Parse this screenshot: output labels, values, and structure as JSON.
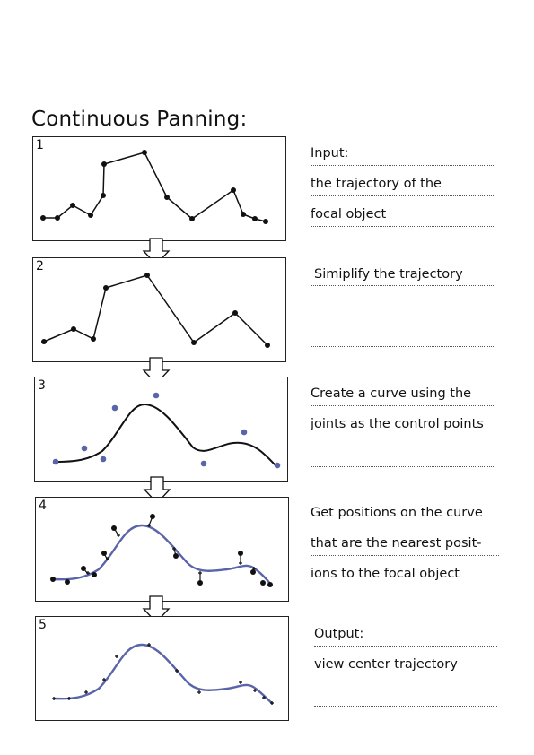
{
  "title": "Continuous Panning:",
  "steps": [
    {
      "number": "1",
      "lines": [
        "Input:",
        "the trajectory of the",
        "focal object"
      ]
    },
    {
      "number": "2",
      "lines": [
        "Simiplify the trajectory",
        "",
        ""
      ]
    },
    {
      "number": "3",
      "lines": [
        "Create a curve using the",
        "joints as the control points",
        ""
      ]
    },
    {
      "number": "4",
      "lines": [
        "Get positions on the curve",
        "that are the nearest posit-",
        "ions to the focal object"
      ]
    },
    {
      "number": "5",
      "lines": [
        "Output:",
        "view center trajectory",
        ""
      ]
    }
  ],
  "colors": {
    "curve": "#5a64a8",
    "control_point": "#5a64a8",
    "ink": "#111111"
  }
}
